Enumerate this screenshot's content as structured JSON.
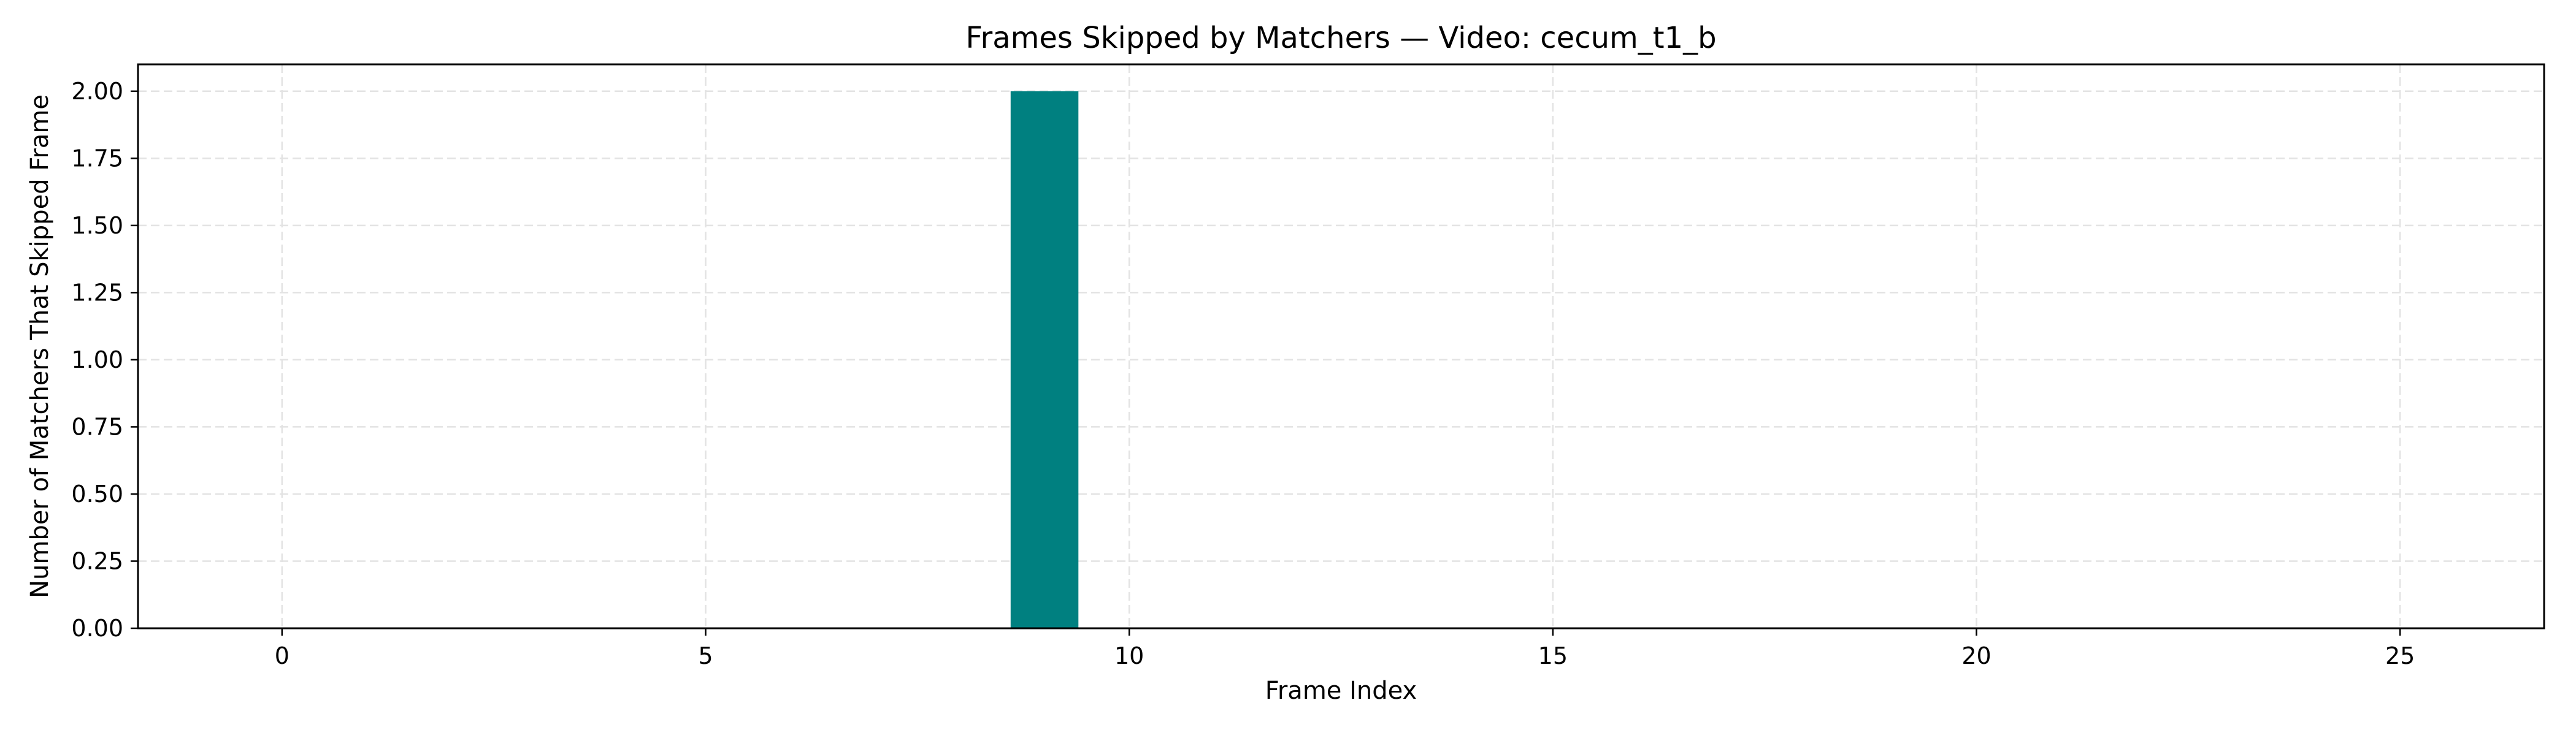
{
  "chart_data": {
    "type": "bar",
    "title": "Frames Skipped by Matchers — Video: cecum_t1_b",
    "xlabel": "Frame Index",
    "ylabel": "Number of Matchers That Skipped Frame",
    "x": [
      9
    ],
    "values": [
      2
    ],
    "xlim": [
      -1.7,
      26.7
    ],
    "ylim": [
      0,
      2.1
    ],
    "xticks": [
      0,
      5,
      10,
      15,
      20,
      25
    ],
    "xtick_labels": [
      "0",
      "5",
      "10",
      "15",
      "20",
      "25"
    ],
    "yticks": [
      0,
      0.25,
      0.5,
      0.75,
      1.0,
      1.25,
      1.5,
      1.75,
      2.0
    ],
    "ytick_labels": [
      "0.00",
      "0.25",
      "0.50",
      "0.75",
      "1.00",
      "1.25",
      "1.50",
      "1.75",
      "2.00"
    ],
    "grid": true,
    "bar_color": "#008080",
    "grid_color": "#e3e3e3"
  }
}
